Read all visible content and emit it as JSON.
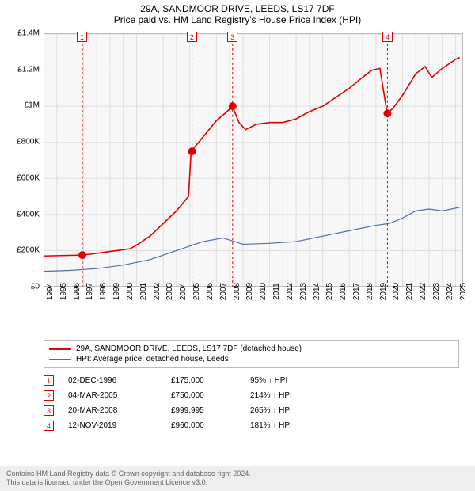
{
  "title_line1": "29A, SANDMOOR DRIVE, LEEDS, LS17 7DF",
  "title_line2": "Price paid vs. HM Land Registry's House Price Index (HPI)",
  "chart": {
    "type": "line",
    "plot_bg": "#f7f7f7",
    "grid_color": "#dddddd",
    "axis_color": "#888888",
    "xlim": [
      1994,
      2025.5
    ],
    "ylim": [
      0,
      1400000
    ],
    "xticks": [
      1994,
      1995,
      1996,
      1997,
      1998,
      1999,
      2000,
      2001,
      2002,
      2003,
      2004,
      2005,
      2006,
      2007,
      2008,
      2009,
      2010,
      2011,
      2012,
      2013,
      2014,
      2015,
      2016,
      2017,
      2018,
      2019,
      2020,
      2021,
      2022,
      2023,
      2024,
      2025
    ],
    "yticks": [
      0,
      200000,
      400000,
      600000,
      800000,
      1000000,
      1200000,
      1400000
    ],
    "ytick_labels": [
      "£0",
      "£200K",
      "£400K",
      "£600K",
      "£800K",
      "£1M",
      "£1.2M",
      "£1.4M"
    ],
    "label_fontsize": 10,
    "series": [
      {
        "name": "property",
        "label": "29A, SANDMOOR DRIVE, LEEDS, LS17 7DF (detached house)",
        "color": "#e00000",
        "width": 1.6,
        "points": [
          [
            1994,
            170000
          ],
          [
            1996.9,
            175000
          ],
          [
            1997.5,
            180000
          ],
          [
            1998.5,
            190000
          ],
          [
            1999.5,
            200000
          ],
          [
            2000.5,
            210000
          ],
          [
            2001,
            230000
          ],
          [
            2002,
            280000
          ],
          [
            2003,
            350000
          ],
          [
            2004,
            420000
          ],
          [
            2004.9,
            500000
          ],
          [
            2005.1,
            750000
          ],
          [
            2006,
            830000
          ],
          [
            2007,
            920000
          ],
          [
            2007.8,
            970000
          ],
          [
            2008.2,
            999995
          ],
          [
            2008.7,
            910000
          ],
          [
            2009.2,
            870000
          ],
          [
            2010,
            900000
          ],
          [
            2011,
            910000
          ],
          [
            2012,
            910000
          ],
          [
            2013,
            930000
          ],
          [
            2014,
            970000
          ],
          [
            2015,
            1000000
          ],
          [
            2016,
            1050000
          ],
          [
            2017,
            1100000
          ],
          [
            2018,
            1160000
          ],
          [
            2018.7,
            1200000
          ],
          [
            2019.3,
            1210000
          ],
          [
            2019.85,
            960000
          ],
          [
            2020.3,
            990000
          ],
          [
            2021,
            1060000
          ],
          [
            2022,
            1180000
          ],
          [
            2022.7,
            1220000
          ],
          [
            2023.2,
            1160000
          ],
          [
            2024,
            1210000
          ],
          [
            2025,
            1260000
          ],
          [
            2025.3,
            1270000
          ]
        ]
      },
      {
        "name": "hpi",
        "label": "HPI: Average price, detached house, Leeds",
        "color": "#4a6fa5",
        "width": 1.2,
        "points": [
          [
            1994,
            85000
          ],
          [
            1996,
            90000
          ],
          [
            1998,
            100000
          ],
          [
            2000,
            120000
          ],
          [
            2002,
            150000
          ],
          [
            2004,
            200000
          ],
          [
            2006,
            250000
          ],
          [
            2007.5,
            270000
          ],
          [
            2009,
            235000
          ],
          [
            2011,
            240000
          ],
          [
            2013,
            250000
          ],
          [
            2015,
            280000
          ],
          [
            2017,
            310000
          ],
          [
            2019,
            340000
          ],
          [
            2020,
            350000
          ],
          [
            2021,
            380000
          ],
          [
            2022,
            420000
          ],
          [
            2023,
            430000
          ],
          [
            2024,
            420000
          ],
          [
            2025,
            435000
          ],
          [
            2025.3,
            440000
          ]
        ]
      }
    ],
    "sale_markers": {
      "color": "#e00000",
      "dash": "3,3",
      "radius": 5,
      "items": [
        {
          "n": "1",
          "x": 1996.92,
          "y": 175000
        },
        {
          "n": "2",
          "x": 2005.17,
          "y": 750000
        },
        {
          "n": "3",
          "x": 2008.22,
          "y": 999995
        },
        {
          "n": "4",
          "x": 2019.87,
          "y": 960000
        }
      ]
    }
  },
  "legend": {
    "items": [
      {
        "color": "#e00000",
        "label": "29A, SANDMOOR DRIVE, LEEDS, LS17 7DF (detached house)"
      },
      {
        "color": "#4a6fa5",
        "label": "HPI: Average price, detached house, Leeds"
      }
    ]
  },
  "events": [
    {
      "n": "1",
      "date": "02-DEC-1996",
      "price": "£175,000",
      "pct": "95%",
      "arrow": "↑",
      "suffix": "HPI"
    },
    {
      "n": "2",
      "date": "04-MAR-2005",
      "price": "£750,000",
      "pct": "214%",
      "arrow": "↑",
      "suffix": "HPI"
    },
    {
      "n": "3",
      "date": "20-MAR-2008",
      "price": "£999,995",
      "pct": "265%",
      "arrow": "↑",
      "suffix": "HPI"
    },
    {
      "n": "4",
      "date": "12-NOV-2019",
      "price": "£960,000",
      "pct": "181%",
      "arrow": "↑",
      "suffix": "HPI"
    }
  ],
  "footer_line1": "Contains HM Land Registry data © Crown copyright and database right 2024.",
  "footer_line2": "This data is licensed under the Open Government Licence v3.0."
}
